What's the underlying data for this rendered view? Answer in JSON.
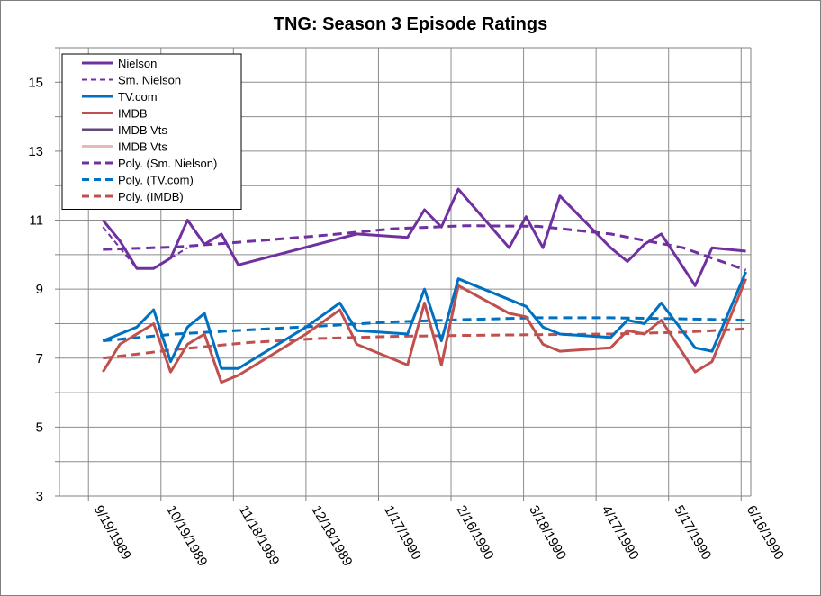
{
  "chart_data": {
    "type": "line",
    "title": "TNG: Season 3 Episode Ratings",
    "xlabel": "",
    "ylabel": "",
    "x_range": [
      "1989-09-07",
      "1990-06-20"
    ],
    "ylim": [
      3,
      16
    ],
    "y_ticks": [
      3,
      5,
      7,
      9,
      11,
      13,
      15
    ],
    "x_ticks": [
      "9/19/1989",
      "10/19/1989",
      "11/18/1989",
      "12/18/1989",
      "1/17/1990",
      "2/16/1990",
      "3/18/1990",
      "4/17/1990",
      "5/17/1990",
      "6/16/1990"
    ],
    "grid": true,
    "legend_position": "top-left",
    "series": [
      {
        "name": "Nielson",
        "color": "#7030a0",
        "style": "solid",
        "points": [
          [
            "1989-09-25",
            11.0
          ],
          [
            "1989-10-02",
            10.4
          ],
          [
            "1989-10-09",
            9.6
          ],
          [
            "1989-10-16",
            9.6
          ],
          [
            "1989-10-23",
            9.9
          ],
          [
            "1989-10-30",
            11.0
          ],
          [
            "1989-11-06",
            10.3
          ],
          [
            "1989-11-13",
            10.6
          ],
          [
            "1989-11-20",
            9.7
          ],
          [
            "1990-01-08",
            10.6
          ],
          [
            "1990-01-29",
            10.5
          ],
          [
            "1990-02-05",
            11.3
          ],
          [
            "1990-02-12",
            10.8
          ],
          [
            "1990-02-19",
            11.9
          ],
          [
            "1990-03-12",
            10.2
          ],
          [
            "1990-03-19",
            11.1
          ],
          [
            "1990-03-26",
            10.2
          ],
          [
            "1990-04-02",
            11.7
          ],
          [
            "1990-04-23",
            10.2
          ],
          [
            "1990-04-30",
            9.8
          ],
          [
            "1990-05-07",
            10.3
          ],
          [
            "1990-05-14",
            10.6
          ],
          [
            "1990-05-28",
            9.1
          ],
          [
            "1990-06-04",
            10.2
          ],
          [
            "1990-06-18",
            10.1
          ]
        ]
      },
      {
        "name": "Sm. Nielson",
        "color": "#7030a0",
        "style": "dashed-thin",
        "points": [
          [
            "1989-09-25",
            10.8
          ],
          [
            "1989-10-09",
            9.6
          ],
          [
            "1989-10-16",
            9.6
          ],
          [
            "1989-10-23",
            9.9
          ],
          [
            "1989-10-30",
            10.2
          ]
        ]
      },
      {
        "name": "TV.com",
        "color": "#0070c0",
        "style": "solid",
        "points": [
          [
            "1989-09-25",
            7.5
          ],
          [
            "1989-10-09",
            7.9
          ],
          [
            "1989-10-16",
            8.4
          ],
          [
            "1989-10-23",
            6.9
          ],
          [
            "1989-10-30",
            7.9
          ],
          [
            "1989-11-06",
            8.3
          ],
          [
            "1989-11-13",
            6.7
          ],
          [
            "1989-11-20",
            6.7
          ],
          [
            "1989-12-18",
            7.9
          ],
          [
            "1990-01-01",
            8.6
          ],
          [
            "1990-01-08",
            7.8
          ],
          [
            "1990-01-29",
            7.7
          ],
          [
            "1990-02-05",
            9.0
          ],
          [
            "1990-02-12",
            7.5
          ],
          [
            "1990-02-19",
            9.3
          ],
          [
            "1990-03-19",
            8.5
          ],
          [
            "1990-03-26",
            7.9
          ],
          [
            "1990-04-02",
            7.7
          ],
          [
            "1990-04-23",
            7.6
          ],
          [
            "1990-04-30",
            8.1
          ],
          [
            "1990-05-07",
            8.0
          ],
          [
            "1990-05-14",
            8.6
          ],
          [
            "1990-05-28",
            7.3
          ],
          [
            "1990-06-04",
            7.2
          ],
          [
            "1990-06-18",
            9.5
          ]
        ]
      },
      {
        "name": "IMDB",
        "color": "#c0504d",
        "style": "solid",
        "points": [
          [
            "1989-09-25",
            6.6
          ],
          [
            "1989-10-02",
            7.4
          ],
          [
            "1989-10-16",
            8.0
          ],
          [
            "1989-10-23",
            6.6
          ],
          [
            "1989-10-30",
            7.4
          ],
          [
            "1989-11-06",
            7.7
          ],
          [
            "1989-11-13",
            6.3
          ],
          [
            "1989-11-20",
            6.5
          ],
          [
            "1989-12-18",
            7.7
          ],
          [
            "1990-01-01",
            8.4
          ],
          [
            "1990-01-08",
            7.4
          ],
          [
            "1990-01-29",
            6.8
          ],
          [
            "1990-02-05",
            8.6
          ],
          [
            "1990-02-12",
            6.8
          ],
          [
            "1990-02-19",
            9.1
          ],
          [
            "1990-03-12",
            8.3
          ],
          [
            "1990-03-19",
            8.2
          ],
          [
            "1990-03-26",
            7.4
          ],
          [
            "1990-04-02",
            7.2
          ],
          [
            "1990-04-23",
            7.3
          ],
          [
            "1990-04-30",
            7.8
          ],
          [
            "1990-05-07",
            7.7
          ],
          [
            "1990-05-14",
            8.1
          ],
          [
            "1990-05-28",
            6.6
          ],
          [
            "1990-06-04",
            6.9
          ],
          [
            "1990-06-18",
            9.3
          ]
        ]
      },
      {
        "name": "IMDB Vts",
        "color": "#604a7b",
        "style": "solid",
        "points": []
      },
      {
        "name": "IMDB Vts",
        "color": "#e6b9b8",
        "style": "solid",
        "points": []
      },
      {
        "name": "Poly. (Sm. Nielson)",
        "color": "#7030a0",
        "style": "dashed-thick",
        "points": [
          [
            "1989-09-25",
            10.15
          ],
          [
            "1989-10-25",
            10.22
          ],
          [
            "1989-11-24",
            10.38
          ],
          [
            "1989-12-24",
            10.55
          ],
          [
            "1990-01-23",
            10.75
          ],
          [
            "1990-02-22",
            10.84
          ],
          [
            "1990-03-24",
            10.82
          ],
          [
            "1990-04-23",
            10.6
          ],
          [
            "1990-05-23",
            10.2
          ],
          [
            "1990-06-18",
            9.55
          ]
        ]
      },
      {
        "name": "Poly. (TV.com)",
        "color": "#0070c0",
        "style": "dashed-thick",
        "points": [
          [
            "1989-09-25",
            7.5
          ],
          [
            "1989-10-25",
            7.7
          ],
          [
            "1989-11-24",
            7.82
          ],
          [
            "1989-12-24",
            7.93
          ],
          [
            "1990-01-23",
            8.05
          ],
          [
            "1990-02-22",
            8.12
          ],
          [
            "1990-03-24",
            8.17
          ],
          [
            "1990-04-23",
            8.17
          ],
          [
            "1990-05-23",
            8.14
          ],
          [
            "1990-06-18",
            8.1
          ]
        ]
      },
      {
        "name": "Poly. (IMDB)",
        "color": "#c0504d",
        "style": "dashed-thick",
        "points": [
          [
            "1989-09-25",
            7.0
          ],
          [
            "1989-10-25",
            7.25
          ],
          [
            "1989-11-24",
            7.45
          ],
          [
            "1989-12-24",
            7.57
          ],
          [
            "1990-01-23",
            7.63
          ],
          [
            "1990-02-22",
            7.66
          ],
          [
            "1990-03-24",
            7.68
          ],
          [
            "1990-04-23",
            7.7
          ],
          [
            "1990-05-23",
            7.75
          ],
          [
            "1990-06-18",
            7.85
          ]
        ]
      }
    ]
  }
}
